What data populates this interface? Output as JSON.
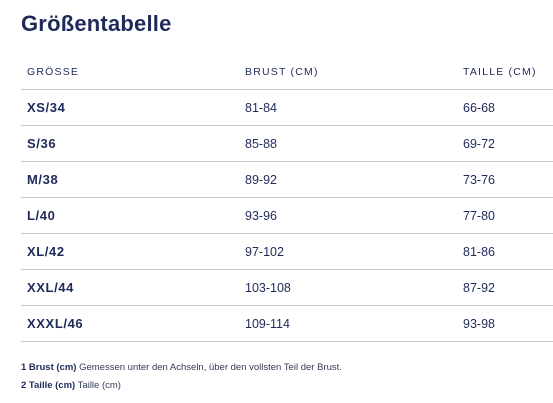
{
  "title": "Größentabelle",
  "table": {
    "headers": [
      "GRÖSSE",
      "BRUST (CM)",
      "TAILLE (CM)"
    ],
    "rows": [
      [
        "XS/34",
        "81-84",
        "66-68"
      ],
      [
        "S/36",
        "85-88",
        "69-72"
      ],
      [
        "M/38",
        "89-92",
        "73-76"
      ],
      [
        "L/40",
        "93-96",
        "77-80"
      ],
      [
        "XL/42",
        "97-102",
        "81-86"
      ],
      [
        "XXL/44",
        "103-108",
        "87-92"
      ],
      [
        "XXXL/46",
        "109-114",
        "93-98"
      ]
    ]
  },
  "footnotes": [
    {
      "term": "1 Brust (cm)",
      "text": "Gemessen unter den Achseln, über den vollsten Teil der Brust."
    },
    {
      "term": "2 Taille (cm)",
      "text": "Taille (cm)"
    }
  ],
  "colors": {
    "text_primary": "#1f2a5a",
    "divider": "#c6cbd8"
  }
}
